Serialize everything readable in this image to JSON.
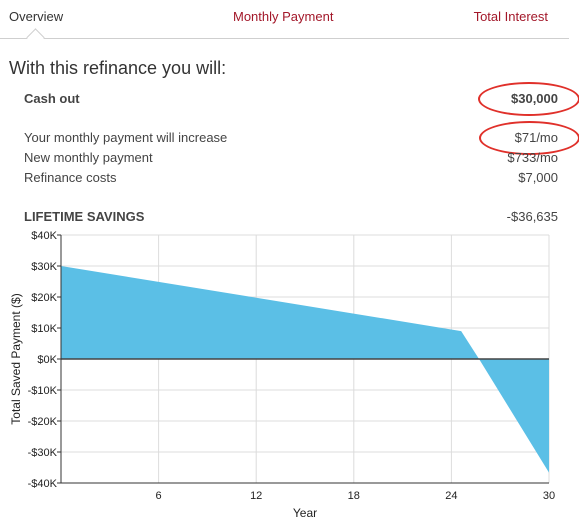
{
  "tabs": [
    {
      "label": "Overview"
    },
    {
      "label": "Monthly Payment"
    },
    {
      "label": "Total Interest"
    }
  ],
  "heading": "With this refinance you will:",
  "cash_out": {
    "label": "Cash out",
    "value": "$30,000"
  },
  "details": [
    {
      "label": "Your monthly payment will increase",
      "value": "$71/mo"
    },
    {
      "label": "New monthly payment",
      "value": "$733/mo"
    },
    {
      "label": "Refinance costs",
      "value": "$7,000"
    }
  ],
  "lifetime_savings": {
    "label": "LIFETIME SAVINGS",
    "value": "-$36,635"
  },
  "colors": {
    "accent": "#a3182a",
    "area": "#5bbfe6",
    "highlight": "#e0302a"
  },
  "chart_data": {
    "type": "area",
    "xlabel": "Year",
    "ylabel": "Total Saved Payment ($)",
    "xlim": [
      0,
      30
    ],
    "ylim": [
      -40000,
      40000
    ],
    "x_ticks": [
      6,
      12,
      18,
      24,
      30
    ],
    "y_ticks": [
      40000,
      30000,
      20000,
      10000,
      0,
      -10000,
      -20000,
      -30000,
      -40000
    ],
    "y_tick_labels": [
      "$40K",
      "$30K",
      "$20K",
      "$10K",
      "$0K",
      "-$10K",
      "-$20K",
      "-$30K",
      "-$40K"
    ],
    "grid": true,
    "series": [
      {
        "x": [
          0,
          24.6,
          25.7,
          30
        ],
        "values": [
          30000,
          9000,
          0,
          -36635
        ]
      }
    ]
  }
}
